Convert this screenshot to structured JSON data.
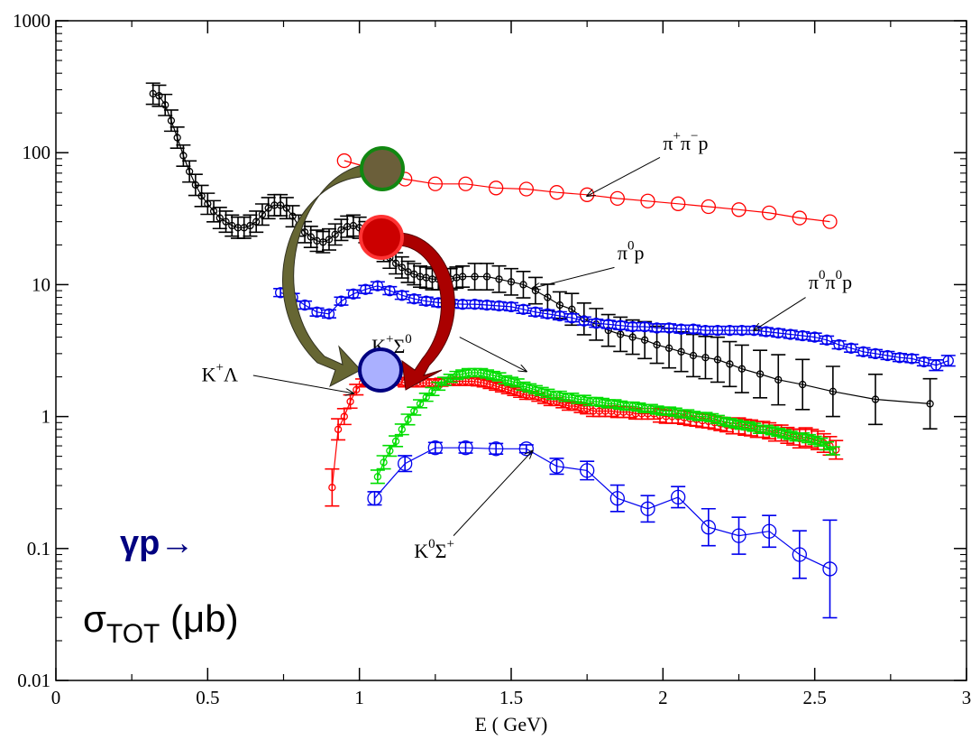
{
  "colors": {
    "black": "#000000",
    "red": "#ff0000",
    "blue": "#0000ee",
    "green": "#00dd00",
    "olive": "#666633",
    "dark_red": "#aa0000",
    "circle_olive": "#6b5f3a",
    "circle_red": "#cc0000",
    "circle_blue": "#aab0ff",
    "reaction_text": "#000080"
  },
  "overlay": {
    "reaction": "γp→",
    "sigma_main": "σ",
    "sigma_sub": "TOT",
    "sigma_unit": " (μb)"
  },
  "chart_data": {
    "type": "scatter",
    "title": "",
    "xlabel": "E ( GeV)",
    "ylabel": "",
    "xlim": [
      0,
      3
    ],
    "ylim": [
      0.01,
      1000
    ],
    "yscale": "log",
    "grid": false,
    "x_ticks": [
      "0",
      "0.5",
      "1",
      "1.5",
      "2",
      "2.5",
      "3"
    ],
    "x_tick_values": [
      0,
      0.5,
      1,
      1.5,
      2,
      2.5,
      3
    ],
    "y_ticks": [
      "0.01",
      "0.1",
      "1",
      "10",
      "100",
      "1000"
    ],
    "y_tick_values": [
      0.01,
      0.1,
      1,
      10,
      100,
      1000
    ],
    "series": [
      {
        "label": "π⁺π⁻p",
        "color": "#ff0000",
        "marker": "circle-large",
        "x": [
          0.95,
          1.05,
          1.15,
          1.25,
          1.35,
          1.45,
          1.55,
          1.65,
          1.75,
          1.85,
          1.95,
          2.05,
          2.15,
          2.25,
          2.35,
          2.45,
          2.55
        ],
        "y": [
          87,
          75,
          63,
          58,
          58,
          54,
          53,
          50,
          48,
          45,
          43,
          41,
          39,
          37,
          35,
          32,
          30
        ],
        "err": [
          0,
          0,
          0,
          0,
          0,
          0,
          0,
          0,
          0,
          0,
          0,
          0,
          0,
          0,
          0,
          0,
          0
        ]
      },
      {
        "label": "π⁰p",
        "color": "#000000",
        "marker": "circle-small",
        "x": [
          0.32,
          0.34,
          0.36,
          0.38,
          0.4,
          0.42,
          0.44,
          0.46,
          0.48,
          0.5,
          0.52,
          0.54,
          0.56,
          0.58,
          0.6,
          0.62,
          0.64,
          0.66,
          0.68,
          0.7,
          0.72,
          0.74,
          0.76,
          0.78,
          0.8,
          0.82,
          0.84,
          0.86,
          0.88,
          0.9,
          0.92,
          0.94,
          0.96,
          0.98,
          1.0,
          1.02,
          1.04,
          1.06,
          1.08,
          1.1,
          1.12,
          1.14,
          1.16,
          1.18,
          1.2,
          1.22,
          1.24,
          1.26,
          1.28,
          1.3,
          1.32,
          1.34,
          1.38,
          1.42,
          1.46,
          1.5,
          1.54,
          1.58,
          1.62,
          1.66,
          1.7,
          1.74,
          1.78,
          1.82,
          1.86,
          1.9,
          1.94,
          1.98,
          2.02,
          2.06,
          2.1,
          2.14,
          2.18,
          2.22,
          2.26,
          2.32,
          2.38,
          2.46,
          2.56,
          2.7,
          2.88
        ],
        "y": [
          280,
          270,
          230,
          175,
          130,
          95,
          72,
          57,
          47,
          41,
          36,
          32,
          30,
          28,
          27,
          27,
          28,
          30,
          34,
          38,
          40,
          40,
          38,
          33,
          28,
          25,
          23,
          21.5,
          21,
          22,
          24,
          26,
          27.5,
          28,
          27,
          25,
          22,
          20,
          18,
          16,
          14.5,
          13.5,
          12.5,
          12,
          11.5,
          11.3,
          11,
          11,
          11,
          11,
          11.3,
          11.5,
          11.5,
          11.5,
          11,
          10.5,
          10,
          9,
          8,
          7,
          6.5,
          5.5,
          5,
          4.5,
          4.2,
          4,
          3.8,
          3.5,
          3.3,
          3.1,
          2.9,
          2.8,
          2.7,
          2.5,
          2.3,
          2.1,
          1.9,
          1.75,
          1.55,
          1.35,
          1.25
        ],
        "err": [
          0.08,
          0.08,
          0.08,
          0.08,
          0.08,
          0.08,
          0.08,
          0.08,
          0.08,
          0.08,
          0.08,
          0.08,
          0.08,
          0.08,
          0.08,
          0.08,
          0.08,
          0.08,
          0.08,
          0.08,
          0.08,
          0.08,
          0.08,
          0.08,
          0.08,
          0.08,
          0.08,
          0.08,
          0.08,
          0.08,
          0.08,
          0.08,
          0.08,
          0.08,
          0.08,
          0.08,
          0.08,
          0.08,
          0.08,
          0.08,
          0.08,
          0.08,
          0.08,
          0.08,
          0.08,
          0.08,
          0.08,
          0.08,
          0.08,
          0.08,
          0.08,
          0.08,
          0.1,
          0.1,
          0.1,
          0.1,
          0.1,
          0.1,
          0.1,
          0.1,
          0.12,
          0.12,
          0.12,
          0.12,
          0.13,
          0.13,
          0.14,
          0.14,
          0.15,
          0.15,
          0.16,
          0.16,
          0.17,
          0.17,
          0.18,
          0.18,
          0.19,
          0.19,
          0.19,
          0.19,
          0.19
        ]
      },
      {
        "label": "π⁰π⁰p",
        "color": "#0000ee",
        "marker": "circle-medium",
        "x": [
          0.74,
          0.78,
          0.82,
          0.86,
          0.9,
          0.94,
          0.98,
          1.02,
          1.06,
          1.1,
          1.14,
          1.18,
          1.22,
          1.26,
          1.3,
          1.34,
          1.38,
          1.42,
          1.46,
          1.5,
          1.54,
          1.58,
          1.62,
          1.66,
          1.7,
          1.74,
          1.78,
          1.82,
          1.86,
          1.9,
          1.94,
          1.98,
          2.02,
          2.06,
          2.1,
          2.14,
          2.18,
          2.22,
          2.26,
          2.3,
          2.34,
          2.38,
          2.42,
          2.46,
          2.5,
          2.54,
          2.58,
          2.62,
          2.66,
          2.7,
          2.74,
          2.78,
          2.82,
          2.86,
          2.9,
          2.94
        ],
        "y": [
          8.7,
          8.0,
          7.0,
          6.2,
          6.0,
          7.5,
          8.5,
          9.2,
          9.8,
          9.0,
          8.3,
          7.8,
          7.5,
          7.3,
          7.2,
          7.1,
          7.1,
          7.0,
          6.9,
          6.8,
          6.5,
          6.2,
          6.0,
          5.8,
          5.6,
          5.3,
          5.1,
          5.0,
          4.9,
          4.8,
          4.8,
          4.7,
          4.7,
          4.6,
          4.6,
          4.5,
          4.5,
          4.5,
          4.5,
          4.5,
          4.4,
          4.3,
          4.2,
          4.1,
          4.0,
          3.8,
          3.5,
          3.3,
          3.1,
          3.0,
          2.9,
          2.8,
          2.75,
          2.6,
          2.45,
          2.65
        ],
        "err": [
          0.03,
          0.03,
          0.03,
          0.03,
          0.03,
          0.03,
          0.03,
          0.03,
          0.03,
          0.03,
          0.03,
          0.03,
          0.03,
          0.03,
          0.03,
          0.03,
          0.03,
          0.03,
          0.03,
          0.03,
          0.03,
          0.03,
          0.03,
          0.03,
          0.03,
          0.03,
          0.03,
          0.03,
          0.03,
          0.03,
          0.03,
          0.03,
          0.03,
          0.03,
          0.03,
          0.03,
          0.03,
          0.03,
          0.03,
          0.03,
          0.03,
          0.03,
          0.03,
          0.03,
          0.03,
          0.03,
          0.03,
          0.03,
          0.03,
          0.03,
          0.03,
          0.03,
          0.03,
          0.03,
          0.04,
          0.04
        ]
      },
      {
        "label": "K⁺Λ",
        "color": "#ff0000",
        "marker": "circle-small",
        "x": [
          0.91,
          0.93,
          0.95,
          0.97,
          0.99,
          1.01,
          1.03,
          1.05,
          1.07,
          1.09,
          1.11,
          1.13,
          1.15,
          1.17,
          1.19,
          1.21,
          1.23,
          1.25,
          1.27,
          1.29,
          1.31,
          1.33,
          1.35,
          1.37,
          1.39,
          1.41,
          1.43,
          1.45,
          1.47,
          1.49,
          1.51,
          1.53,
          1.55,
          1.57,
          1.59,
          1.61,
          1.63,
          1.65,
          1.67,
          1.69,
          1.71,
          1.73,
          1.75,
          1.77,
          1.79,
          1.81,
          1.83,
          1.85,
          1.87,
          1.89,
          1.91,
          1.93,
          1.95,
          1.97,
          1.99,
          2.01,
          2.03,
          2.05,
          2.07,
          2.09,
          2.11,
          2.13,
          2.15,
          2.17,
          2.19,
          2.21,
          2.23,
          2.25,
          2.27,
          2.29,
          2.31,
          2.33,
          2.35,
          2.37,
          2.39,
          2.41,
          2.43,
          2.45,
          2.47,
          2.49,
          2.51,
          2.53,
          2.55,
          2.57
        ],
        "y": [
          0.29,
          0.8,
          1.0,
          1.3,
          1.6,
          1.8,
          1.85,
          1.85,
          1.85,
          1.85,
          1.85,
          1.85,
          1.8,
          1.8,
          1.8,
          1.8,
          1.8,
          1.8,
          1.82,
          1.85,
          1.85,
          1.85,
          1.85,
          1.85,
          1.83,
          1.8,
          1.75,
          1.7,
          1.65,
          1.6,
          1.55,
          1.5,
          1.45,
          1.45,
          1.4,
          1.35,
          1.3,
          1.3,
          1.25,
          1.2,
          1.2,
          1.15,
          1.15,
          1.1,
          1.1,
          1.1,
          1.1,
          1.08,
          1.08,
          1.08,
          1.05,
          1.05,
          1.05,
          1.05,
          1.02,
          1.0,
          1.0,
          1.0,
          0.98,
          0.96,
          0.95,
          0.93,
          0.92,
          0.9,
          0.88,
          0.86,
          0.85,
          0.85,
          0.83,
          0.82,
          0.8,
          0.8,
          0.78,
          0.75,
          0.75,
          0.72,
          0.7,
          0.68,
          0.7,
          0.68,
          0.66,
          0.63,
          0.6,
          0.56
        ],
        "err": [
          0.14,
          0.08,
          0.06,
          0.05,
          0.04,
          0.03,
          0.03,
          0.03,
          0.03,
          0.03,
          0.03,
          0.03,
          0.03,
          0.03,
          0.03,
          0.03,
          0.03,
          0.03,
          0.03,
          0.03,
          0.03,
          0.03,
          0.03,
          0.03,
          0.03,
          0.03,
          0.03,
          0.03,
          0.03,
          0.03,
          0.03,
          0.03,
          0.03,
          0.03,
          0.03,
          0.03,
          0.03,
          0.03,
          0.03,
          0.03,
          0.03,
          0.03,
          0.04,
          0.04,
          0.04,
          0.04,
          0.04,
          0.04,
          0.04,
          0.04,
          0.04,
          0.04,
          0.04,
          0.04,
          0.05,
          0.05,
          0.05,
          0.05,
          0.05,
          0.05,
          0.05,
          0.05,
          0.05,
          0.05,
          0.05,
          0.05,
          0.06,
          0.06,
          0.06,
          0.06,
          0.06,
          0.06,
          0.06,
          0.06,
          0.06,
          0.06,
          0.06,
          0.07,
          0.07,
          0.07,
          0.07,
          0.07,
          0.07,
          0.07
        ]
      },
      {
        "label": "K⁺Σ⁰",
        "color": "#00dd00",
        "marker": "circle-small",
        "x": [
          1.06,
          1.08,
          1.1,
          1.12,
          1.14,
          1.16,
          1.18,
          1.2,
          1.22,
          1.24,
          1.26,
          1.28,
          1.3,
          1.32,
          1.34,
          1.36,
          1.38,
          1.4,
          1.42,
          1.44,
          1.46,
          1.48,
          1.5,
          1.52,
          1.54,
          1.56,
          1.58,
          1.6,
          1.62,
          1.64,
          1.66,
          1.68,
          1.7,
          1.72,
          1.74,
          1.76,
          1.78,
          1.8,
          1.82,
          1.84,
          1.86,
          1.88,
          1.9,
          1.92,
          1.94,
          1.96,
          1.98,
          2.0,
          2.02,
          2.04,
          2.06,
          2.08,
          2.1,
          2.12,
          2.14,
          2.16,
          2.18,
          2.2,
          2.22,
          2.24,
          2.26,
          2.28,
          2.3,
          2.32,
          2.34,
          2.36,
          2.38,
          2.4,
          2.42,
          2.44,
          2.46,
          2.48,
          2.5,
          2.52,
          2.54,
          2.56
        ],
        "y": [
          0.35,
          0.45,
          0.55,
          0.65,
          0.8,
          0.95,
          1.1,
          1.25,
          1.4,
          1.55,
          1.7,
          1.85,
          1.95,
          2.05,
          2.1,
          2.15,
          2.15,
          2.15,
          2.1,
          2.05,
          2.0,
          1.9,
          1.85,
          1.8,
          1.7,
          1.65,
          1.6,
          1.55,
          1.5,
          1.45,
          1.45,
          1.4,
          1.4,
          1.35,
          1.35,
          1.3,
          1.3,
          1.28,
          1.25,
          1.25,
          1.22,
          1.2,
          1.2,
          1.18,
          1.15,
          1.15,
          1.12,
          1.1,
          1.1,
          1.08,
          1.05,
          1.05,
          1.02,
          1.0,
          1.0,
          0.98,
          0.95,
          0.92,
          0.9,
          0.88,
          0.86,
          0.85,
          0.83,
          0.8,
          0.8,
          0.78,
          0.76,
          0.74,
          0.72,
          0.7,
          0.7,
          0.68,
          0.66,
          0.64,
          0.6,
          0.55
        ],
        "err": [
          0.05,
          0.05,
          0.04,
          0.04,
          0.04,
          0.04,
          0.03,
          0.03,
          0.03,
          0.03,
          0.03,
          0.03,
          0.03,
          0.03,
          0.03,
          0.03,
          0.03,
          0.03,
          0.03,
          0.03,
          0.03,
          0.03,
          0.03,
          0.03,
          0.03,
          0.03,
          0.03,
          0.03,
          0.03,
          0.03,
          0.03,
          0.03,
          0.03,
          0.03,
          0.03,
          0.03,
          0.03,
          0.03,
          0.03,
          0.03,
          0.03,
          0.03,
          0.03,
          0.03,
          0.03,
          0.03,
          0.03,
          0.03,
          0.03,
          0.03,
          0.03,
          0.03,
          0.03,
          0.03,
          0.03,
          0.03,
          0.03,
          0.03,
          0.03,
          0.03,
          0.03,
          0.03,
          0.03,
          0.03,
          0.03,
          0.03,
          0.03,
          0.03,
          0.03,
          0.03,
          0.03,
          0.03,
          0.03,
          0.03,
          0.03,
          0.03
        ]
      },
      {
        "label": "K⁰Σ⁺",
        "color": "#0000ee",
        "marker": "circle-large",
        "x": [
          1.05,
          1.15,
          1.25,
          1.35,
          1.45,
          1.55,
          1.65,
          1.75,
          1.85,
          1.95,
          2.05,
          2.15,
          2.25,
          2.35,
          2.45,
          2.55
        ],
        "y": [
          0.24,
          0.44,
          0.58,
          0.58,
          0.57,
          0.57,
          0.42,
          0.39,
          0.24,
          0.2,
          0.245,
          0.145,
          0.125,
          0.135,
          0.09,
          0.07
        ],
        "err": [
          0.05,
          0.06,
          0.04,
          0.04,
          0.04,
          0.03,
          0.06,
          0.07,
          0.1,
          0.1,
          0.08,
          0.14,
          0.14,
          0.12,
          0.18,
          0.37
        ]
      }
    ],
    "annotations": [
      {
        "id": "pipimp",
        "base": "π",
        "sup": "+",
        "base2": "π",
        "sup2": "−",
        "tail": "p",
        "label_x": 2.0,
        "label_y": 105,
        "arrow_from_x": 1.99,
        "arrow_from_y": 92,
        "arrow_to_x": 1.75,
        "arrow_to_y": 47
      },
      {
        "id": "pi0p",
        "base": "π",
        "sup": "0",
        "tail": "p",
        "label_x": 1.85,
        "label_y": 15.5,
        "arrow_from_x": 1.84,
        "arrow_from_y": 13.5,
        "arrow_to_x": 1.57,
        "arrow_to_y": 9.4
      },
      {
        "id": "pi0pi0p",
        "base": "π",
        "sup": "0",
        "base2": "π",
        "sup2": "0",
        "tail": "p",
        "label_x": 2.48,
        "label_y": 9.3,
        "arrow_from_x": 2.47,
        "arrow_from_y": 8.0,
        "arrow_to_x": 2.3,
        "arrow_to_y": 4.5
      },
      {
        "id": "kplam",
        "base": "K",
        "sup": "+",
        "tail": "Λ",
        "label_x": 0.48,
        "label_y": 1.85,
        "arrow_from_x": 0.65,
        "arrow_from_y": 2.05,
        "arrow_to_x": 0.98,
        "arrow_to_y": 1.5
      },
      {
        "id": "kpsig0",
        "base": "K",
        "sup": "+",
        "tail": "Σ",
        "tail_sup": "0",
        "label_x": 1.04,
        "label_y": 3.05,
        "arrow_from_x": 1.33,
        "arrow_from_y": 4.0,
        "arrow_to_x": 1.55,
        "arrow_to_y": 2.2
      },
      {
        "id": "k0sigp",
        "base": "K",
        "sup": "0",
        "tail": "Σ",
        "tail_sup": "+",
        "label_x": 1.18,
        "label_y": 0.085,
        "arrow_from_x": 1.31,
        "arrow_from_y": 0.125,
        "arrow_to_x": 1.57,
        "arrow_to_y": 0.55
      }
    ]
  }
}
